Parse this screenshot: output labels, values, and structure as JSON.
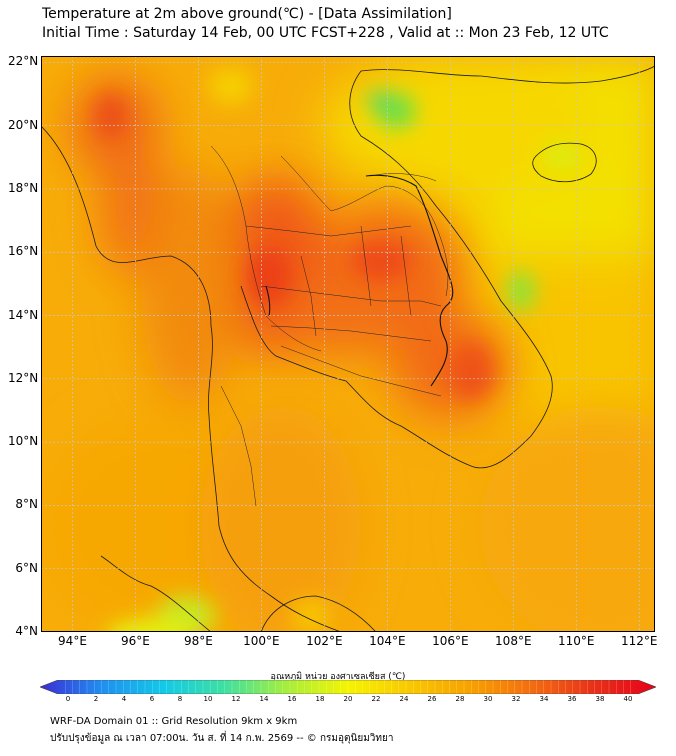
{
  "header": {
    "title": "Temperature at 2m above ground(℃) - [Data Assimilation]",
    "subtitle": "Initial Time : Saturday 14 Feb, 00 UTC FCST+228 , Valid at :: Mon 23 Feb, 12 UTC"
  },
  "map": {
    "lon_range": [
      93,
      112.5
    ],
    "lat_range": [
      4,
      22.2
    ],
    "lat_ticks": [
      "22°N",
      "20°N",
      "18°N",
      "16°N",
      "14°N",
      "12°N",
      "10°N",
      "8°N",
      "6°N",
      "4°N"
    ],
    "lon_ticks": [
      "94°E",
      "96°E",
      "98°E",
      "100°E",
      "102°E",
      "104°E",
      "106°E",
      "108°E",
      "110°E",
      "112°E"
    ],
    "gridlines": true
  },
  "colorbar": {
    "label": "อุณหภูมิ หน่วย องศาเซลเซียส (℃)",
    "ticks": [
      "0",
      "2",
      "4",
      "6",
      "8",
      "10",
      "12",
      "14",
      "16",
      "18",
      "20",
      "22",
      "24",
      "26",
      "28",
      "30",
      "32",
      "34",
      "36",
      "38",
      "40"
    ],
    "colors": [
      "#3d2bd6",
      "#1f8ff0",
      "#12c9e8",
      "#3fe0a0",
      "#a6ee3c",
      "#f5f400",
      "#f9c800",
      "#f8a000",
      "#f46c10",
      "#e83018",
      "#e8001a"
    ]
  },
  "footer": {
    "line1": "WRF-DA Domain 01 :: Grid Resolution 9km x 9km",
    "line2": "ปรับปรุงข้อมูล ณ เวลา 07:00น. วัน ส. ที่ 14 ก.พ. 2569 -- © กรมอุตุนิยมวิทยา"
  }
}
